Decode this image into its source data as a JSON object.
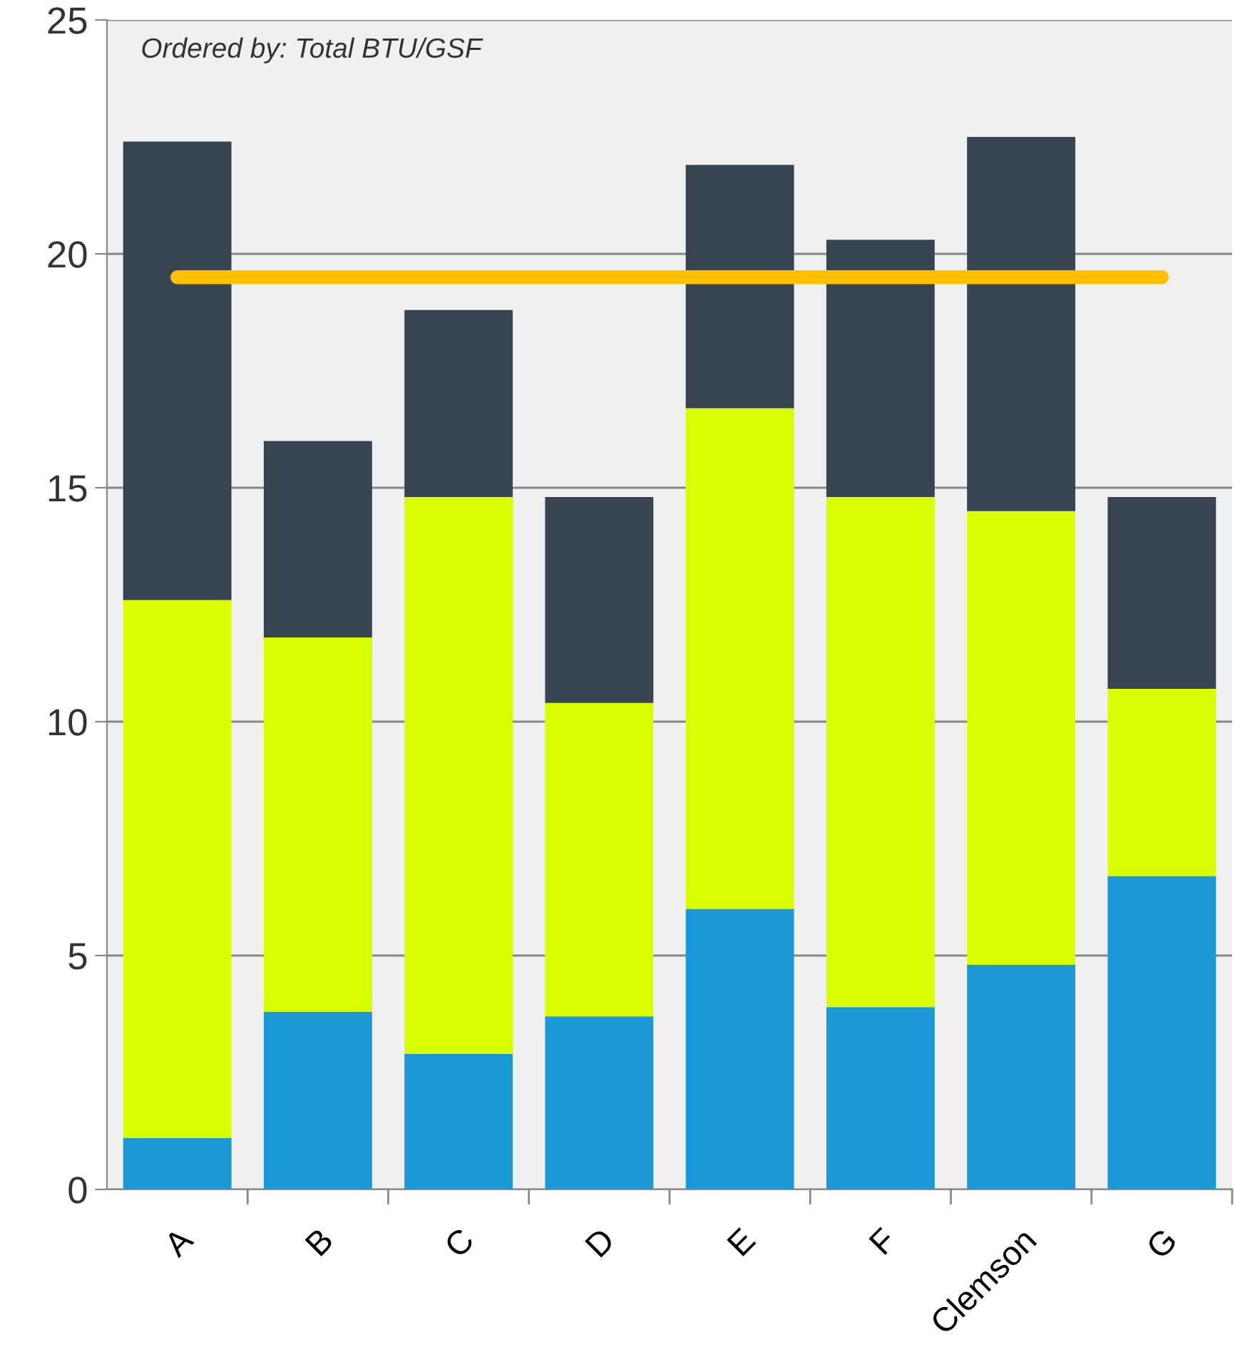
{
  "chart_data": {
    "type": "bar",
    "stacked": true,
    "categories": [
      "A",
      "B",
      "C",
      "D",
      "E",
      "F",
      "Clemson",
      "G"
    ],
    "series": [
      {
        "color": "#1c98d6",
        "values": [
          1.1,
          3.8,
          2.9,
          3.7,
          6.0,
          3.9,
          4.8,
          6.7
        ]
      },
      {
        "color": "#d9ff00",
        "values": [
          11.5,
          8.0,
          11.9,
          6.7,
          10.7,
          10.9,
          9.7,
          4.0
        ]
      },
      {
        "color": "#36454f",
        "values": [
          9.8,
          4.2,
          4.0,
          4.4,
          5.2,
          5.5,
          8.0,
          4.1
        ]
      }
    ],
    "ylim": [
      0,
      25
    ],
    "yticks": [
      0,
      5,
      10,
      15,
      20,
      25
    ],
    "grid": "y",
    "ref_lines": [
      {
        "axis": "y",
        "value": 19.5,
        "color": "#ffc000"
      }
    ],
    "annotations": [
      "Ordered by: Total BTU/GSF"
    ]
  }
}
